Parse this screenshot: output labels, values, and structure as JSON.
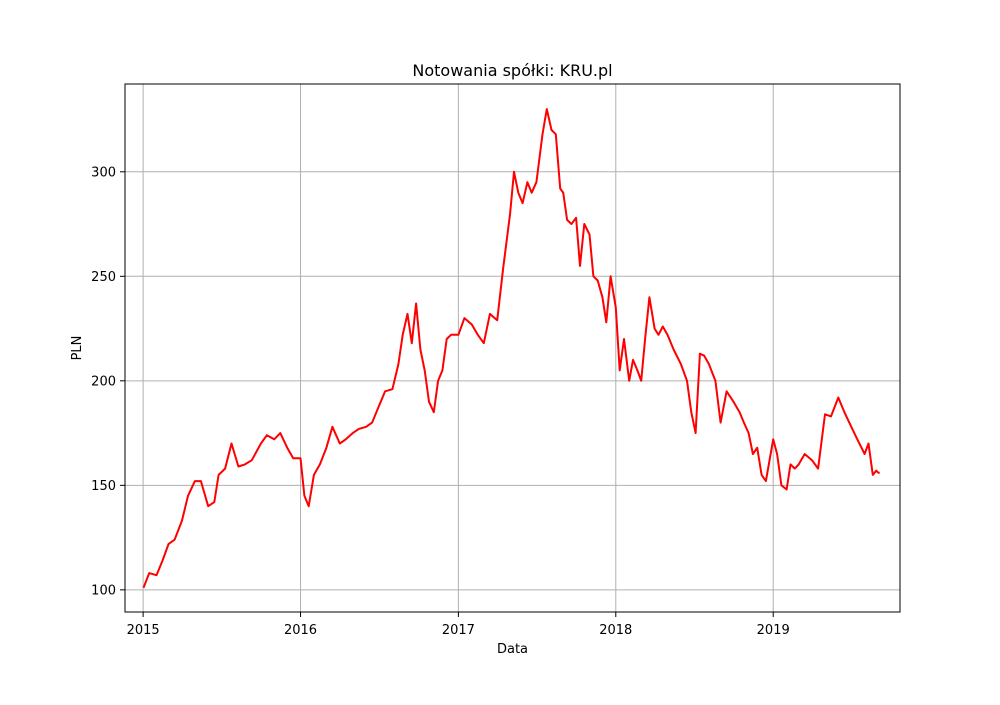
{
  "chart_data": {
    "type": "line",
    "title": "Notowania spółki: KRU.pl",
    "xlabel": "Data",
    "ylabel": "PLN",
    "xlim": [
      "2014-11-20",
      "2019-10-22"
    ],
    "ylim": [
      89.4,
      342
    ],
    "x_ticks": [
      "2015",
      "2016",
      "2017",
      "2018",
      "2019"
    ],
    "y_ticks": [
      "100",
      "150",
      "200",
      "250",
      "300"
    ],
    "grid": true,
    "legend": "none",
    "colors": {
      "line": "#ff0000",
      "grid": "#b0b0b0",
      "axes": "#000000"
    },
    "series": [
      {
        "x": [
          "2015-01-02",
          "2015-01-15",
          "2015-02-01",
          "2015-02-15",
          "2015-03-01",
          "2015-03-15",
          "2015-04-01",
          "2015-04-15",
          "2015-05-01",
          "2015-05-15",
          "2015-06-01",
          "2015-06-15",
          "2015-06-25",
          "2015-07-10",
          "2015-07-25",
          "2015-08-10",
          "2015-08-25",
          "2015-09-10",
          "2015-10-01",
          "2015-10-15",
          "2015-11-01",
          "2015-11-15",
          "2015-12-01",
          "2015-12-15",
          "2016-01-01",
          "2016-01-10",
          "2016-01-20",
          "2016-02-01",
          "2016-02-15",
          "2016-03-01",
          "2016-03-15",
          "2016-04-01",
          "2016-04-15",
          "2016-05-01",
          "2016-05-15",
          "2016-06-01",
          "2016-06-15",
          "2016-07-01",
          "2016-07-15",
          "2016-08-01",
          "2016-08-15",
          "2016-08-25",
          "2016-09-05",
          "2016-09-15",
          "2016-09-25",
          "2016-10-05",
          "2016-10-15",
          "2016-10-25",
          "2016-11-05",
          "2016-11-15",
          "2016-11-25",
          "2016-12-05",
          "2016-12-15",
          "2017-01-01",
          "2017-01-15",
          "2017-02-01",
          "2017-02-15",
          "2017-03-01",
          "2017-03-15",
          "2017-04-01",
          "2017-04-15",
          "2017-05-01",
          "2017-05-10",
          "2017-05-20",
          "2017-05-30",
          "2017-06-10",
          "2017-06-20",
          "2017-07-01",
          "2017-07-15",
          "2017-07-25",
          "2017-08-05",
          "2017-08-15",
          "2017-08-25",
          "2017-09-01",
          "2017-09-10",
          "2017-09-20",
          "2017-10-01",
          "2017-10-10",
          "2017-10-20",
          "2017-11-01",
          "2017-11-10",
          "2017-11-20",
          "2017-12-01",
          "2017-12-10",
          "2017-12-20",
          "2018-01-01",
          "2018-01-10",
          "2018-01-20",
          "2018-02-01",
          "2018-02-10",
          "2018-02-20",
          "2018-03-01",
          "2018-03-10",
          "2018-03-20",
          "2018-04-01",
          "2018-04-10",
          "2018-04-20",
          "2018-05-01",
          "2018-05-15",
          "2018-06-01",
          "2018-06-15",
          "2018-06-25",
          "2018-07-05",
          "2018-07-15",
          "2018-07-25",
          "2018-08-05",
          "2018-08-20",
          "2018-09-01",
          "2018-09-15",
          "2018-10-01",
          "2018-10-15",
          "2018-10-25",
          "2018-11-05",
          "2018-11-15",
          "2018-11-25",
          "2018-12-05",
          "2018-12-15",
          "2019-01-01",
          "2019-01-10",
          "2019-01-20",
          "2019-02-01",
          "2019-02-10",
          "2019-02-20",
          "2019-03-01",
          "2019-03-15",
          "2019-04-01",
          "2019-04-15",
          "2019-05-01",
          "2019-05-15",
          "2019-06-01",
          "2019-06-15",
          "2019-07-01",
          "2019-07-15",
          "2019-08-01",
          "2019-08-10",
          "2019-08-20",
          "2019-08-28",
          "2019-09-02",
          "2019-09-05"
        ],
        "y": [
          101,
          108,
          107,
          114,
          122,
          124,
          133,
          145,
          152,
          152,
          140,
          142,
          155,
          158,
          170,
          159,
          160,
          162,
          170,
          174,
          172,
          175,
          168,
          163,
          163,
          145,
          140,
          155,
          160,
          168,
          178,
          170,
          172,
          175,
          177,
          178,
          180,
          188,
          195,
          196,
          208,
          222,
          232,
          218,
          237,
          215,
          205,
          190,
          185,
          200,
          205,
          220,
          222,
          222,
          230,
          227,
          222,
          218,
          232,
          229,
          254,
          280,
          300,
          290,
          285,
          295,
          290,
          295,
          318,
          330,
          320,
          318,
          292,
          290,
          277,
          275,
          278,
          255,
          275,
          270,
          250,
          248,
          240,
          228,
          250,
          235,
          205,
          220,
          200,
          210,
          205,
          200,
          220,
          240,
          225,
          222,
          226,
          222,
          215,
          208,
          200,
          185,
          175,
          213,
          212,
          208,
          200,
          180,
          195,
          190,
          185,
          180,
          175,
          165,
          168,
          155,
          152,
          172,
          165,
          150,
          148,
          160,
          158,
          160,
          165,
          162,
          158,
          184,
          183,
          192,
          185,
          178,
          172,
          165,
          170,
          155,
          157,
          156,
          156
        ]
      }
    ]
  }
}
